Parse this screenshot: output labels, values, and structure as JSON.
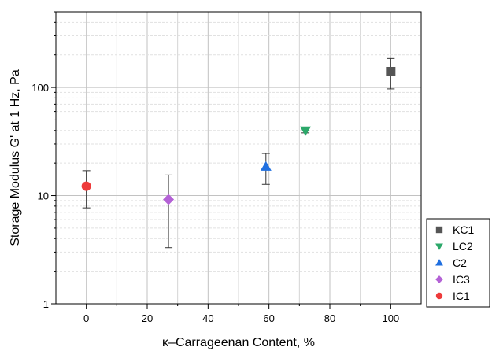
{
  "chart_data": {
    "type": "scatter",
    "title": "",
    "xlabel": "κ–Carrageenan Content, %",
    "ylabel": "Storage Modulus G' at 1 Hz, Pa",
    "xlim": [
      -10,
      110
    ],
    "ylim": [
      1,
      500
    ],
    "yscale": "log",
    "x_ticks": [
      0,
      20,
      40,
      60,
      80,
      100
    ],
    "x_tick_labels": [
      "0",
      "20",
      "40",
      "60",
      "80",
      "100"
    ],
    "y_ticks": [
      1,
      10,
      100
    ],
    "y_tick_labels": [
      "1",
      "10",
      "100"
    ],
    "grid": true,
    "legend_position": "lower-right-outside",
    "series": [
      {
        "name": "KC1",
        "marker": "square",
        "color": "#555555",
        "x": 100,
        "y": 140,
        "err_low": 97,
        "err_high": 185
      },
      {
        "name": "LC2",
        "marker": "triangle-down",
        "color": "#2ca86a",
        "x": 72,
        "y": 40,
        "err_low": 38,
        "err_high": 42
      },
      {
        "name": "C2",
        "marker": "triangle-up",
        "color": "#1f6fe0",
        "x": 59,
        "y": 18.5,
        "err_low": 12.7,
        "err_high": 24.5
      },
      {
        "name": "IC3",
        "marker": "diamond",
        "color": "#b462d6",
        "x": 27,
        "y": 9.2,
        "err_low": 3.3,
        "err_high": 15.5
      },
      {
        "name": "IC1",
        "marker": "circle",
        "color": "#ee3b3b",
        "x": 0,
        "y": 12.2,
        "err_low": 7.7,
        "err_high": 17
      }
    ]
  }
}
